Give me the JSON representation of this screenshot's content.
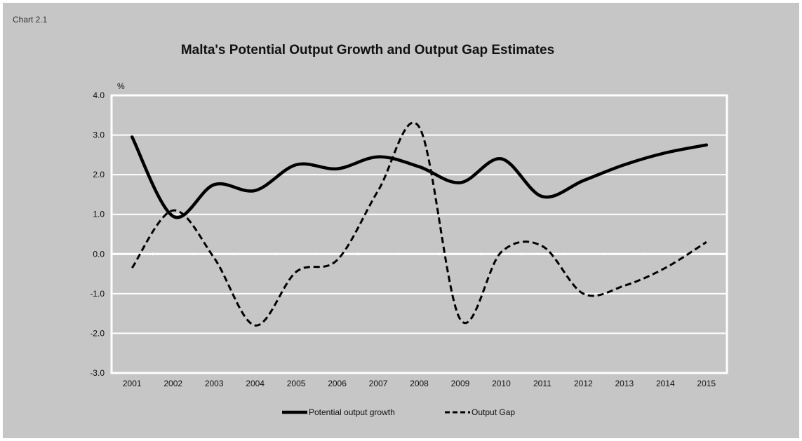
{
  "chart_number": "Chart 2.1",
  "chart_data": {
    "type": "line",
    "title": "Malta's Potential Output Growth and Output Gap Estimates",
    "ylabel": "%",
    "xlabel": "",
    "categories": [
      "2001",
      "2002",
      "2003",
      "2004",
      "2005",
      "2006",
      "2007",
      "2008",
      "2009",
      "2010",
      "2011",
      "2012",
      "2013",
      "2014",
      "2015"
    ],
    "y_ticks": [
      "4.0",
      "3.0",
      "2.0",
      "1.0",
      "0.0",
      "-1.0",
      "-2.0",
      "-3.0"
    ],
    "ylim": [
      -3,
      4
    ],
    "grid": true,
    "legend_position": "bottom",
    "series": [
      {
        "name": "Potential output growth",
        "style": "solid",
        "color": "#000000",
        "values": [
          2.95,
          0.95,
          1.75,
          1.6,
          2.25,
          2.15,
          2.45,
          2.2,
          1.8,
          2.4,
          1.45,
          1.85,
          2.25,
          2.55,
          2.75
        ]
      },
      {
        "name": "Output Gap",
        "style": "dashed",
        "color": "#000000",
        "values": [
          -0.35,
          1.1,
          -0.1,
          -1.8,
          -0.45,
          -0.15,
          1.6,
          3.2,
          -1.65,
          0.05,
          0.2,
          -1.0,
          -0.8,
          -0.35,
          0.3
        ]
      }
    ]
  }
}
